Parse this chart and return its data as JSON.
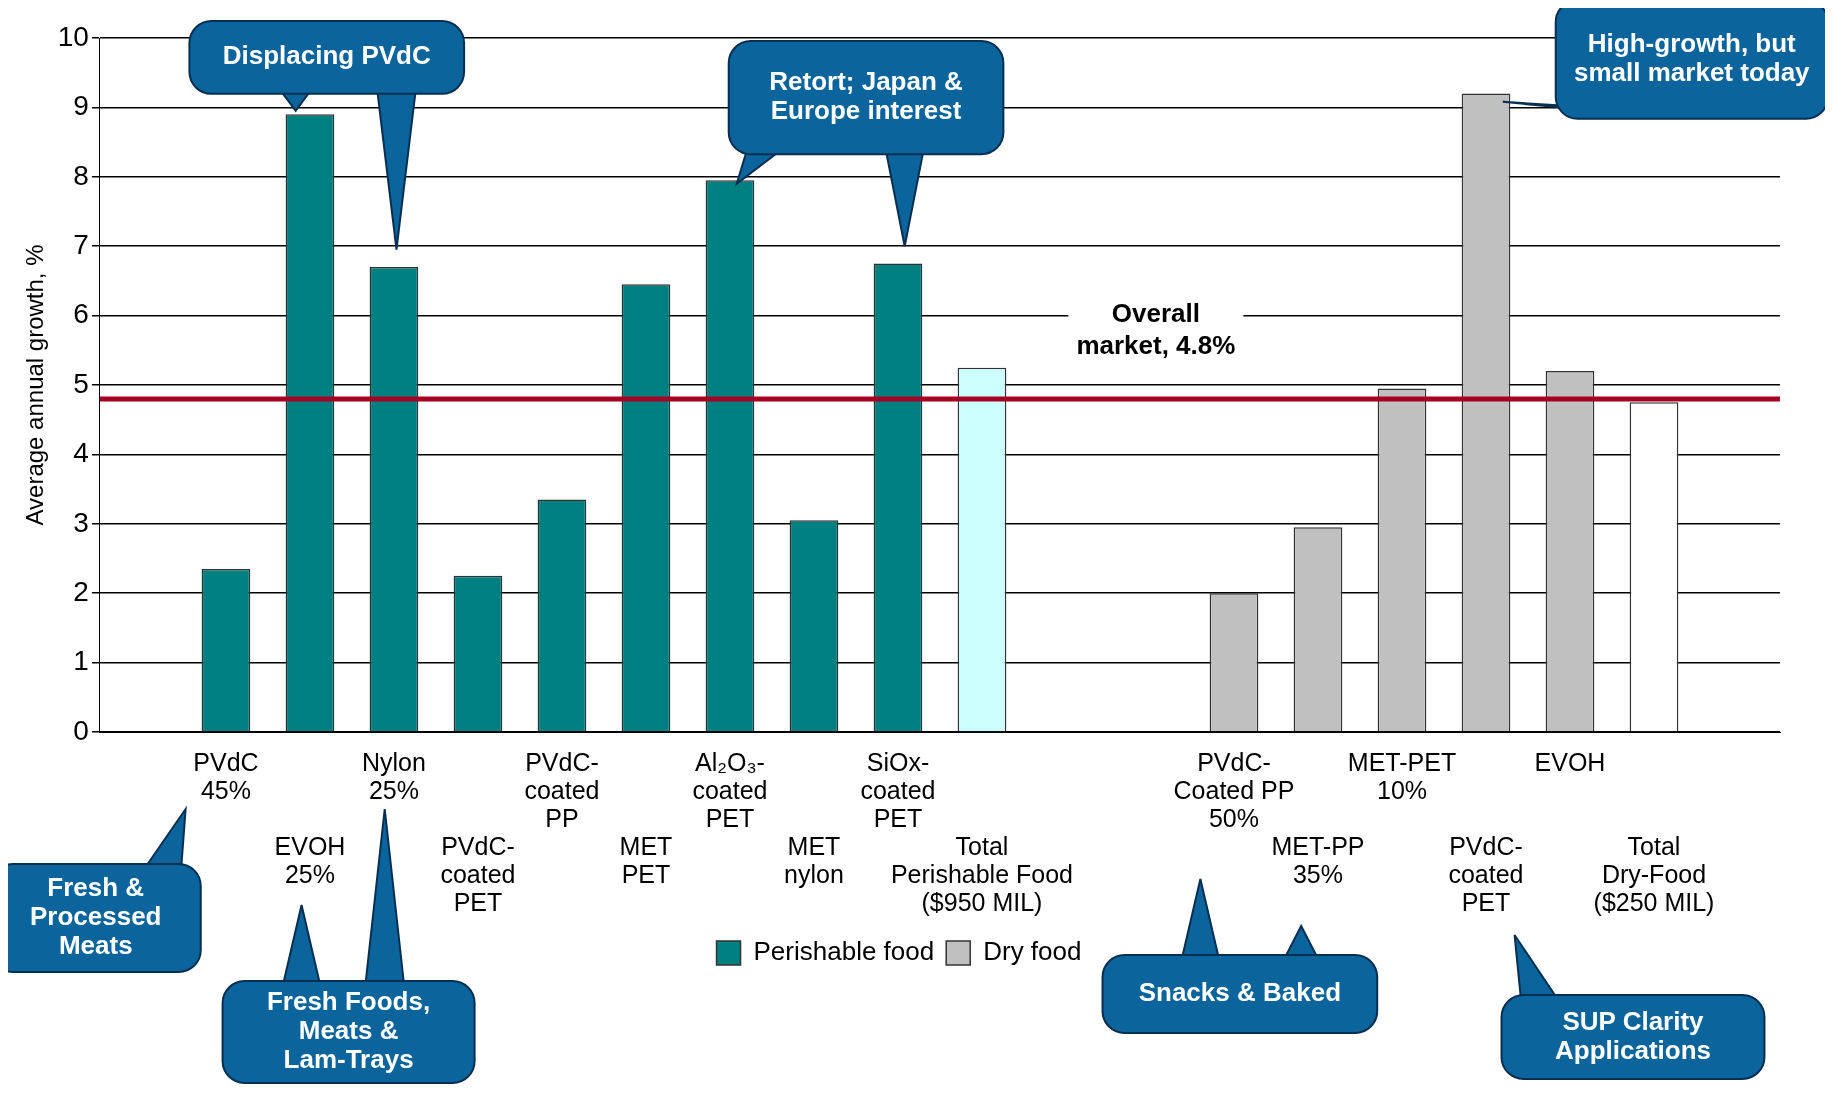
{
  "chart_data": {
    "type": "bar",
    "ylabel": "Average annual growth, %",
    "categories": [
      null,
      "PVdC\n45%",
      "EVOH\n25%",
      "Nylon\n25%",
      "PVdC-\ncoated\nPET",
      "PVdC-\ncoated\nPP",
      "MET\nPET",
      "Al₂O₃-\ncoated\nPET",
      "MET\nnylon",
      "SiOx-\ncoated\nPET",
      "Total\nPerishable Food\n($950 MIL)",
      null,
      null,
      "PVdC-\nCoated PP\n50%",
      "MET-PP\n35%",
      "MET-PET\n10%",
      "PVdC-\ncoated\nPET",
      "EVOH",
      "Total\nDry-Food\n($250 MIL)",
      null
    ],
    "series": [
      {
        "name": "Perishable food",
        "color": "#008080",
        "values": [
          null,
          2.35,
          8.9,
          6.7,
          2.25,
          3.35,
          6.45,
          7.95,
          3.05,
          6.75,
          5.25,
          null,
          null,
          null,
          null,
          null,
          null,
          null,
          null,
          null
        ],
        "colors": [
          null,
          "#008080",
          "#008080",
          "#008080",
          "#008080",
          "#008080",
          "#008080",
          "#008080",
          "#008080",
          "#008080",
          "#ccffff",
          null,
          null,
          null,
          null,
          null,
          null,
          null,
          null,
          null
        ]
      },
      {
        "name": "Dry food",
        "color": "#c0c0c0",
        "values": [
          null,
          null,
          null,
          null,
          null,
          null,
          null,
          null,
          null,
          null,
          null,
          null,
          null,
          2.0,
          2.95,
          4.95,
          9.2,
          5.2,
          4.75,
          null
        ],
        "colors": [
          null,
          null,
          null,
          null,
          null,
          null,
          null,
          null,
          null,
          null,
          null,
          null,
          null,
          "#c0c0c0",
          "#c0c0c0",
          "#c0c0c0",
          "#c0c0c0",
          "#c0c0c0",
          "#ffffff",
          null
        ]
      }
    ],
    "ylim": [
      0,
      10
    ],
    "yticks": [
      0,
      1,
      2,
      3,
      4,
      5,
      6,
      7,
      8,
      9,
      10
    ],
    "grid": "y",
    "legend": "bottom",
    "ref_lines": [
      {
        "axis": "y",
        "value": 4.8,
        "label": "Overall market, 4.8%",
        "color": "#a50021"
      }
    ],
    "annotations": [
      "Displacing PVdC",
      "Retort; Japan & Europe interest",
      "High-growth, but small market today",
      "Fresh & Processed Meats",
      "Fresh Foods, Meats & Lam-Trays",
      "Snacks & Baked",
      "SUP Clarity Applications"
    ]
  }
}
